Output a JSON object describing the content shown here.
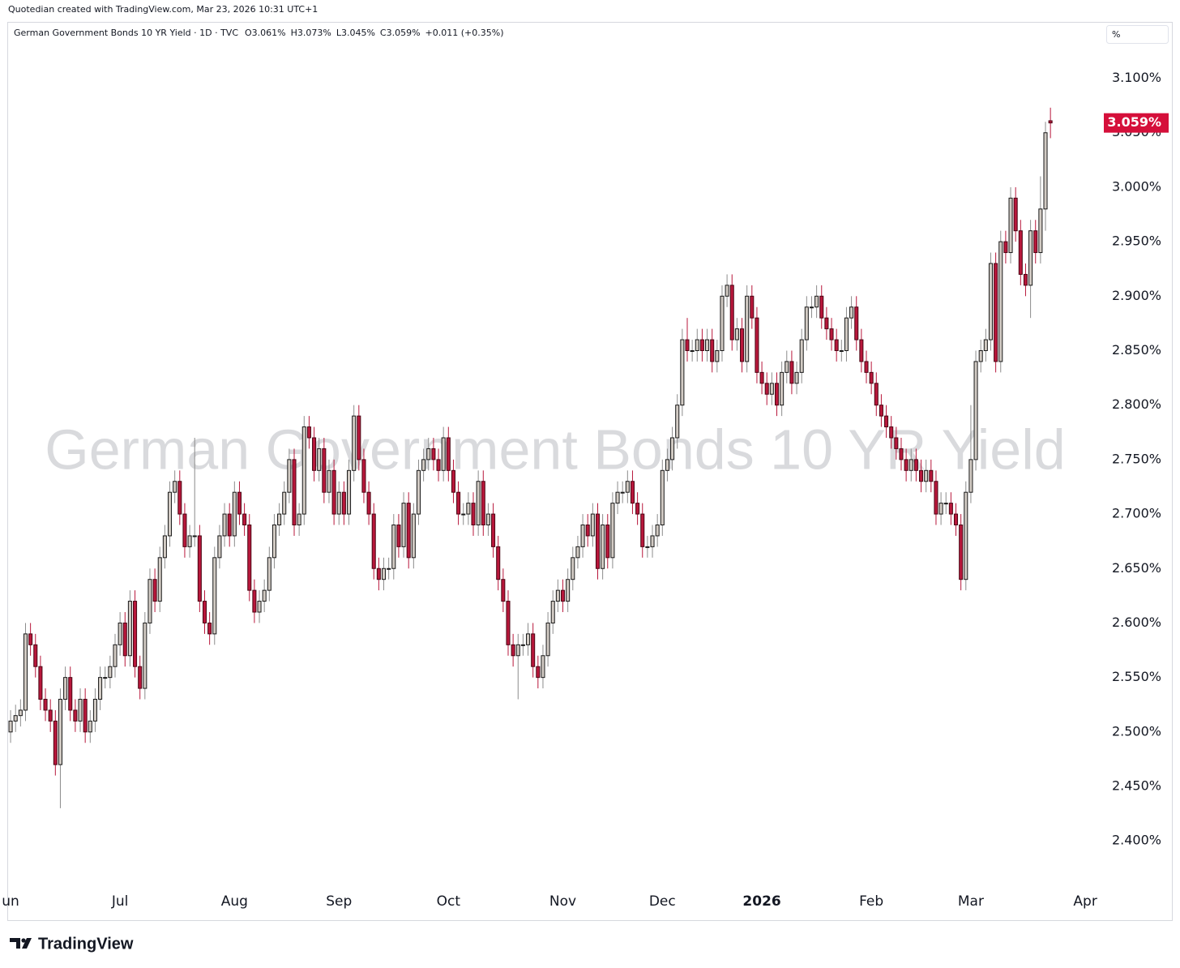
{
  "header": {
    "credit": "Quotedian created with TradingView.com, Mar 23, 2026 10:31 UTC+1",
    "symbol": "German Government Bonds 10 YR Yield · 1D · TVC",
    "open": "O3.061%",
    "high": "H3.073%",
    "low": "L3.045%",
    "close": "C3.059%",
    "change": "+0.011 (+0.35%)",
    "unit": "%",
    "watermark": "German Government Bonds 10 YR Yield"
  },
  "footer": {
    "brand": "TradingView"
  },
  "chart_data": {
    "type": "candlestick",
    "up_color": "#d2cbc4",
    "down_color": "#b8173b",
    "xlim": [
      -0.5,
      219.4
    ],
    "xticks": [
      {
        "value": 0,
        "label": "un"
      },
      {
        "value": 22,
        "label": "Jul"
      },
      {
        "value": 45,
        "label": "Aug"
      },
      {
        "value": 66,
        "label": "Sep"
      },
      {
        "value": 88,
        "label": "Oct"
      },
      {
        "value": 111,
        "label": "Nov"
      },
      {
        "value": 131,
        "label": "Dec"
      },
      {
        "value": 151,
        "label": "2026"
      },
      {
        "value": 173,
        "label": "Feb"
      },
      {
        "value": 193,
        "label": "Mar"
      },
      {
        "value": 216,
        "label": "Apr"
      }
    ],
    "ylim": [
      2.357,
      3.151
    ],
    "yticks": [
      {
        "value": 2.4,
        "label": "2.400%"
      },
      {
        "value": 2.45,
        "label": "2.450%"
      },
      {
        "value": 2.5,
        "label": "2.500%"
      },
      {
        "value": 2.55,
        "label": "2.550%"
      },
      {
        "value": 2.6,
        "label": "2.600%"
      },
      {
        "value": 2.65,
        "label": "2.650%"
      },
      {
        "value": 2.7,
        "label": "2.700%"
      },
      {
        "value": 2.75,
        "label": "2.750%"
      },
      {
        "value": 2.8,
        "label": "2.800%"
      },
      {
        "value": 2.85,
        "label": "2.850%"
      },
      {
        "value": 2.9,
        "label": "2.900%"
      },
      {
        "value": 2.95,
        "label": "2.950%"
      },
      {
        "value": 3.0,
        "label": "3.000%"
      },
      {
        "value": 3.05,
        "label": "3.050%"
      },
      {
        "value": 3.1,
        "label": "3.100%"
      }
    ],
    "last_value": {
      "value": 3.059,
      "label": "3.059%"
    },
    "open": [
      2.5,
      2.51,
      2.515,
      2.52,
      2.59,
      2.58,
      2.56,
      2.53,
      2.52,
      2.51,
      2.47,
      2.53,
      2.55,
      2.52,
      2.51,
      2.53,
      2.5,
      2.51,
      2.53,
      2.55,
      2.55,
      2.56,
      2.58,
      2.6,
      2.57,
      2.62,
      2.56,
      2.54,
      2.6,
      2.64,
      2.62,
      2.66,
      2.68,
      2.72,
      2.73,
      2.7,
      2.67,
      2.68,
      2.68,
      2.62,
      2.6,
      2.59,
      2.66,
      2.68,
      2.7,
      2.68,
      2.72,
      2.7,
      2.69,
      2.63,
      2.61,
      2.62,
      2.63,
      2.66,
      2.69,
      2.7,
      2.72,
      2.75,
      2.69,
      2.7,
      2.78,
      2.77,
      2.74,
      2.76,
      2.72,
      2.74,
      2.7,
      2.72,
      2.7,
      2.74,
      2.79,
      2.75,
      2.72,
      2.7,
      2.65,
      2.64,
      2.65,
      2.65,
      2.69,
      2.67,
      2.71,
      2.66,
      2.7,
      2.74,
      2.75,
      2.76,
      2.75,
      2.74,
      2.77,
      2.74,
      2.72,
      2.7,
      2.7,
      2.71,
      2.69,
      2.73,
      2.69,
      2.7,
      2.67,
      2.64,
      2.62,
      2.58,
      2.57,
      2.58,
      2.58,
      2.59,
      2.56,
      2.55,
      2.57,
      2.6,
      2.62,
      2.63,
      2.62,
      2.64,
      2.66,
      2.67,
      2.69,
      2.68,
      2.7,
      2.65,
      2.69,
      2.66,
      2.71,
      2.72,
      2.72,
      2.73,
      2.71,
      2.7,
      2.67,
      2.67,
      2.68,
      2.69,
      2.74,
      2.75,
      2.77,
      2.8,
      2.86,
      2.85,
      2.85,
      2.86,
      2.85,
      2.86,
      2.84,
      2.85,
      2.9,
      2.91,
      2.86,
      2.87,
      2.84,
      2.9,
      2.88,
      2.83,
      2.82,
      2.81,
      2.82,
      2.8,
      2.83,
      2.84,
      2.82,
      2.83,
      2.86,
      2.89,
      2.89,
      2.9,
      2.88,
      2.87,
      2.86,
      2.85,
      2.85,
      2.88,
      2.89,
      2.86,
      2.84,
      2.83,
      2.82,
      2.8,
      2.79,
      2.78,
      2.77,
      2.76,
      2.75,
      2.74,
      2.75,
      2.74,
      2.73,
      2.74,
      2.73,
      2.7,
      2.71,
      2.71,
      2.7,
      2.69,
      2.64,
      2.72,
      2.75,
      2.84,
      2.85,
      2.86,
      2.93,
      2.84,
      2.95,
      2.94,
      2.99,
      2.96,
      2.92,
      2.91,
      2.96,
      2.94,
      2.98,
      3.061
    ],
    "high": [
      2.52,
      2.525,
      2.53,
      2.6,
      2.6,
      2.59,
      2.57,
      2.54,
      2.53,
      2.52,
      2.54,
      2.56,
      2.56,
      2.53,
      2.54,
      2.54,
      2.52,
      2.54,
      2.56,
      2.56,
      2.57,
      2.59,
      2.61,
      2.61,
      2.63,
      2.63,
      2.57,
      2.61,
      2.65,
      2.65,
      2.67,
      2.69,
      2.73,
      2.74,
      2.74,
      2.71,
      2.69,
      2.77,
      2.69,
      2.63,
      2.61,
      2.67,
      2.69,
      2.71,
      2.71,
      2.73,
      2.73,
      2.71,
      2.7,
      2.64,
      2.63,
      2.64,
      2.67,
      2.7,
      2.71,
      2.73,
      2.76,
      2.76,
      2.71,
      2.79,
      2.79,
      2.78,
      2.77,
      2.77,
      2.75,
      2.75,
      2.73,
      2.73,
      2.75,
      2.8,
      2.8,
      2.76,
      2.73,
      2.71,
      2.66,
      2.66,
      2.66,
      2.7,
      2.7,
      2.72,
      2.72,
      2.71,
      2.75,
      2.76,
      2.77,
      2.77,
      2.76,
      2.78,
      2.78,
      2.75,
      2.73,
      2.71,
      2.72,
      2.72,
      2.74,
      2.74,
      2.71,
      2.71,
      2.68,
      2.65,
      2.63,
      2.59,
      2.59,
      2.59,
      2.6,
      2.6,
      2.57,
      2.58,
      2.61,
      2.63,
      2.64,
      2.64,
      2.65,
      2.67,
      2.68,
      2.7,
      2.7,
      2.71,
      2.71,
      2.7,
      2.7,
      2.72,
      2.73,
      2.73,
      2.74,
      2.74,
      2.72,
      2.71,
      2.68,
      2.69,
      2.7,
      2.75,
      2.76,
      2.78,
      2.81,
      2.87,
      2.88,
      2.86,
      2.87,
      2.87,
      2.87,
      2.87,
      2.86,
      2.91,
      2.92,
      2.92,
      2.88,
      2.88,
      2.91,
      2.91,
      2.89,
      2.84,
      2.83,
      2.83,
      2.83,
      2.84,
      2.85,
      2.85,
      2.84,
      2.87,
      2.9,
      2.9,
      2.91,
      2.91,
      2.89,
      2.88,
      2.87,
      2.86,
      2.89,
      2.9,
      2.9,
      2.87,
      2.85,
      2.84,
      2.83,
      2.81,
      2.8,
      2.79,
      2.78,
      2.77,
      2.76,
      2.76,
      2.76,
      2.75,
      2.75,
      2.75,
      2.74,
      2.72,
      2.72,
      2.72,
      2.71,
      2.7,
      2.73,
      2.8,
      2.85,
      2.86,
      2.87,
      2.94,
      2.94,
      2.96,
      2.96,
      3.0,
      3.0,
      2.97,
      2.93,
      2.97,
      2.97,
      3.01,
      3.06,
      3.073
    ],
    "low": [
      2.49,
      2.5,
      2.505,
      2.51,
      2.57,
      2.55,
      2.52,
      2.51,
      2.5,
      2.46,
      2.43,
      2.52,
      2.51,
      2.5,
      2.5,
      2.49,
      2.49,
      2.5,
      2.52,
      2.54,
      2.54,
      2.55,
      2.57,
      2.56,
      2.56,
      2.55,
      2.53,
      2.53,
      2.59,
      2.61,
      2.61,
      2.65,
      2.67,
      2.71,
      2.69,
      2.66,
      2.66,
      2.67,
      2.61,
      2.59,
      2.58,
      2.58,
      2.65,
      2.67,
      2.67,
      2.67,
      2.69,
      2.68,
      2.62,
      2.6,
      2.6,
      2.61,
      2.62,
      2.65,
      2.68,
      2.69,
      2.71,
      2.68,
      2.68,
      2.69,
      2.76,
      2.73,
      2.73,
      2.71,
      2.71,
      2.69,
      2.69,
      2.69,
      2.69,
      2.73,
      2.74,
      2.71,
      2.69,
      2.64,
      2.63,
      2.63,
      2.64,
      2.64,
      2.66,
      2.66,
      2.65,
      2.65,
      2.69,
      2.73,
      2.74,
      2.74,
      2.73,
      2.73,
      2.73,
      2.71,
      2.69,
      2.69,
      2.69,
      2.68,
      2.68,
      2.68,
      2.68,
      2.66,
      2.63,
      2.61,
      2.57,
      2.56,
      2.53,
      2.57,
      2.57,
      2.55,
      2.54,
      2.54,
      2.56,
      2.59,
      2.61,
      2.61,
      2.61,
      2.63,
      2.65,
      2.66,
      2.67,
      2.67,
      2.64,
      2.64,
      2.65,
      2.65,
      2.7,
      2.71,
      2.71,
      2.7,
      2.69,
      2.66,
      2.66,
      2.66,
      2.67,
      2.68,
      2.73,
      2.74,
      2.76,
      2.79,
      2.84,
      2.84,
      2.84,
      2.84,
      2.84,
      2.83,
      2.83,
      2.84,
      2.89,
      2.85,
      2.85,
      2.83,
      2.83,
      2.87,
      2.82,
      2.81,
      2.8,
      2.8,
      2.79,
      2.79,
      2.82,
      2.81,
      2.81,
      2.82,
      2.85,
      2.88,
      2.88,
      2.87,
      2.86,
      2.85,
      2.84,
      2.84,
      2.84,
      2.87,
      2.85,
      2.83,
      2.82,
      2.81,
      2.79,
      2.78,
      2.77,
      2.76,
      2.75,
      2.74,
      2.73,
      2.73,
      2.73,
      2.72,
      2.72,
      2.72,
      2.69,
      2.69,
      2.7,
      2.69,
      2.68,
      2.63,
      2.63,
      2.71,
      2.74,
      2.83,
      2.84,
      2.85,
      2.83,
      2.83,
      2.93,
      2.93,
      2.95,
      2.91,
      2.9,
      2.88,
      2.93,
      2.93,
      2.96,
      3.045
    ],
    "close": [
      2.51,
      2.515,
      2.52,
      2.59,
      2.58,
      2.56,
      2.53,
      2.52,
      2.51,
      2.47,
      2.53,
      2.55,
      2.52,
      2.51,
      2.53,
      2.5,
      2.51,
      2.53,
      2.55,
      2.55,
      2.56,
      2.58,
      2.6,
      2.57,
      2.62,
      2.56,
      2.54,
      2.6,
      2.64,
      2.62,
      2.66,
      2.68,
      2.72,
      2.73,
      2.7,
      2.67,
      2.68,
      2.68,
      2.62,
      2.6,
      2.59,
      2.66,
      2.68,
      2.7,
      2.68,
      2.72,
      2.7,
      2.69,
      2.63,
      2.61,
      2.62,
      2.63,
      2.66,
      2.69,
      2.7,
      2.72,
      2.75,
      2.69,
      2.7,
      2.78,
      2.77,
      2.74,
      2.76,
      2.72,
      2.74,
      2.7,
      2.72,
      2.7,
      2.74,
      2.79,
      2.75,
      2.72,
      2.7,
      2.65,
      2.64,
      2.65,
      2.65,
      2.69,
      2.67,
      2.71,
      2.66,
      2.7,
      2.74,
      2.75,
      2.76,
      2.75,
      2.74,
      2.77,
      2.74,
      2.72,
      2.7,
      2.7,
      2.71,
      2.69,
      2.73,
      2.69,
      2.7,
      2.67,
      2.64,
      2.62,
      2.58,
      2.57,
      2.58,
      2.58,
      2.59,
      2.56,
      2.55,
      2.57,
      2.6,
      2.62,
      2.63,
      2.62,
      2.64,
      2.66,
      2.67,
      2.69,
      2.68,
      2.7,
      2.65,
      2.69,
      2.66,
      2.71,
      2.72,
      2.72,
      2.73,
      2.71,
      2.7,
      2.67,
      2.67,
      2.68,
      2.69,
      2.74,
      2.75,
      2.77,
      2.8,
      2.86,
      2.85,
      2.85,
      2.86,
      2.85,
      2.86,
      2.84,
      2.85,
      2.9,
      2.91,
      2.86,
      2.87,
      2.84,
      2.9,
      2.88,
      2.83,
      2.82,
      2.81,
      2.82,
      2.8,
      2.83,
      2.84,
      2.82,
      2.83,
      2.86,
      2.89,
      2.89,
      2.9,
      2.88,
      2.87,
      2.86,
      2.85,
      2.85,
      2.88,
      2.89,
      2.86,
      2.84,
      2.83,
      2.82,
      2.8,
      2.79,
      2.78,
      2.77,
      2.76,
      2.75,
      2.74,
      2.75,
      2.74,
      2.73,
      2.74,
      2.73,
      2.7,
      2.71,
      2.71,
      2.7,
      2.69,
      2.64,
      2.72,
      2.75,
      2.84,
      2.85,
      2.86,
      2.93,
      2.84,
      2.95,
      2.94,
      2.99,
      2.96,
      2.92,
      2.91,
      2.96,
      2.94,
      2.98,
      3.05,
      3.059
    ]
  }
}
